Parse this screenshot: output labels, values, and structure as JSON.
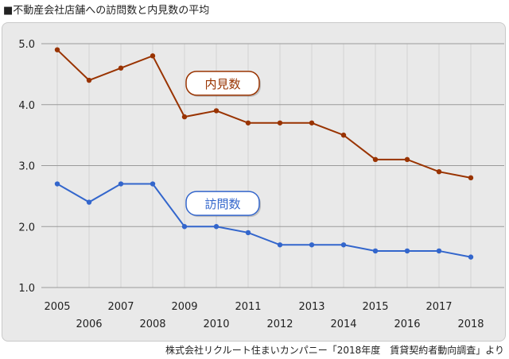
{
  "title": "■不動産会社店舗への訪問数と内見数の平均",
  "source": "株式会社リクルート住まいカンパニー「2018年度　賃貸契約者動向調査」より",
  "colors": {
    "viewings": "#993300",
    "visits": "#3366cc",
    "grid": "#9a9a9a",
    "panel": "#e9e9e9"
  },
  "chart_data": {
    "type": "line",
    "x": [
      "2005",
      "2006",
      "2007",
      "2008",
      "2009",
      "2010",
      "2011",
      "2012",
      "2013",
      "2014",
      "2015",
      "2016",
      "2017",
      "2018"
    ],
    "ylim": [
      1.0,
      5.0
    ],
    "yticks": [
      "1.0",
      "2.0",
      "3.0",
      "4.0",
      "5.0"
    ],
    "grid": true,
    "series": [
      {
        "name": "内見数",
        "color": "#993300",
        "values": [
          4.9,
          4.4,
          4.6,
          4.8,
          3.8,
          3.9,
          3.7,
          3.7,
          3.7,
          3.5,
          3.1,
          3.1,
          2.9,
          2.8
        ]
      },
      {
        "name": "訪問数",
        "color": "#3366cc",
        "values": [
          2.7,
          2.4,
          2.7,
          2.7,
          2.0,
          2.0,
          1.9,
          1.7,
          1.7,
          1.7,
          1.6,
          1.6,
          1.6,
          1.5
        ]
      }
    ]
  }
}
